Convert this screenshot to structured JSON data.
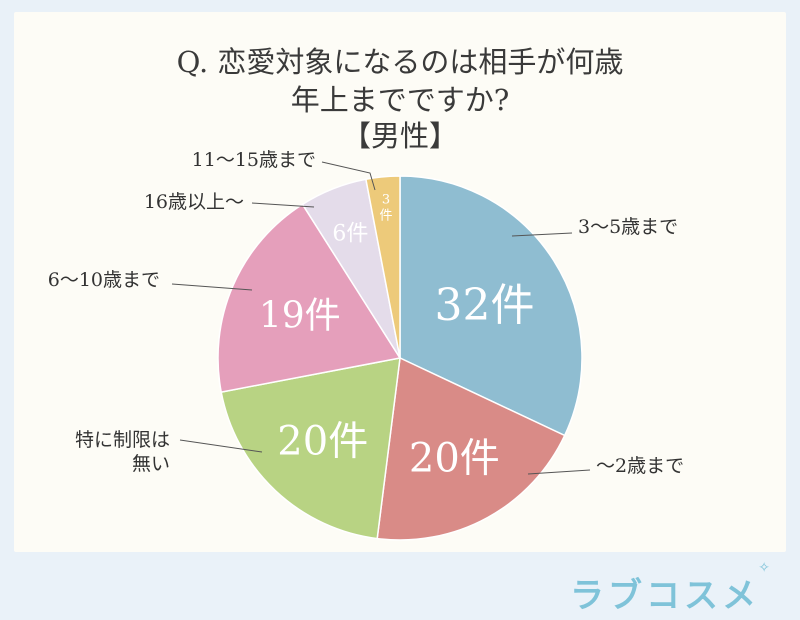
{
  "title_lines": [
    "Q. 恋愛対象になるのは相手が何歳",
    "年上までですか?",
    "【男性】"
  ],
  "logo": "ラブコスメ",
  "colors": {
    "background": "#fdfcf6",
    "frame": "#e9f1f8",
    "logo": "#7fc3d9"
  },
  "chart_data": {
    "type": "pie",
    "start": "12 o'clock",
    "direction": "clockwise",
    "unit": "件",
    "slices": [
      {
        "label": "3〜5歳まで",
        "value": 32,
        "value_label": "32件",
        "color": "#8fbdd1"
      },
      {
        "label": "〜2歳まで",
        "value": 20,
        "value_label": "20件",
        "color": "#d98b87"
      },
      {
        "label_lines": [
          "特に制限は",
          "無い"
        ],
        "value": 20,
        "value_label": "20件",
        "color": "#b8d383"
      },
      {
        "label": "6〜10歳まで",
        "value": 19,
        "value_label": "19件",
        "color": "#e59fbb"
      },
      {
        "label": "16歳以上〜",
        "value": 6,
        "value_label": "6件",
        "color": "#e4dcea"
      },
      {
        "label": "11〜15歳まで",
        "value": 3,
        "value_label_lines": [
          "3",
          "件"
        ],
        "color": "#edca7a"
      }
    ]
  }
}
